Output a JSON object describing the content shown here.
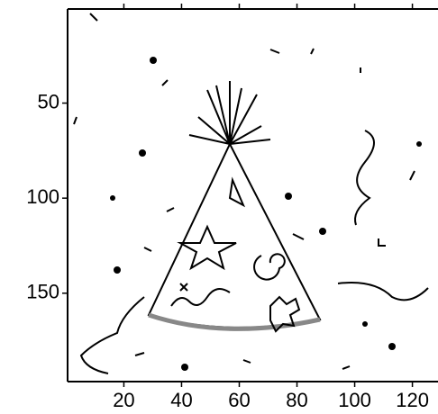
{
  "chart_data": {
    "type": "image",
    "xlim": [
      0.5,
      129.5
    ],
    "ylim": [
      196.5,
      0.5
    ],
    "xticks": [
      20,
      40,
      60,
      80,
      100,
      120
    ],
    "yticks": [
      50,
      100,
      150
    ]
  }
}
